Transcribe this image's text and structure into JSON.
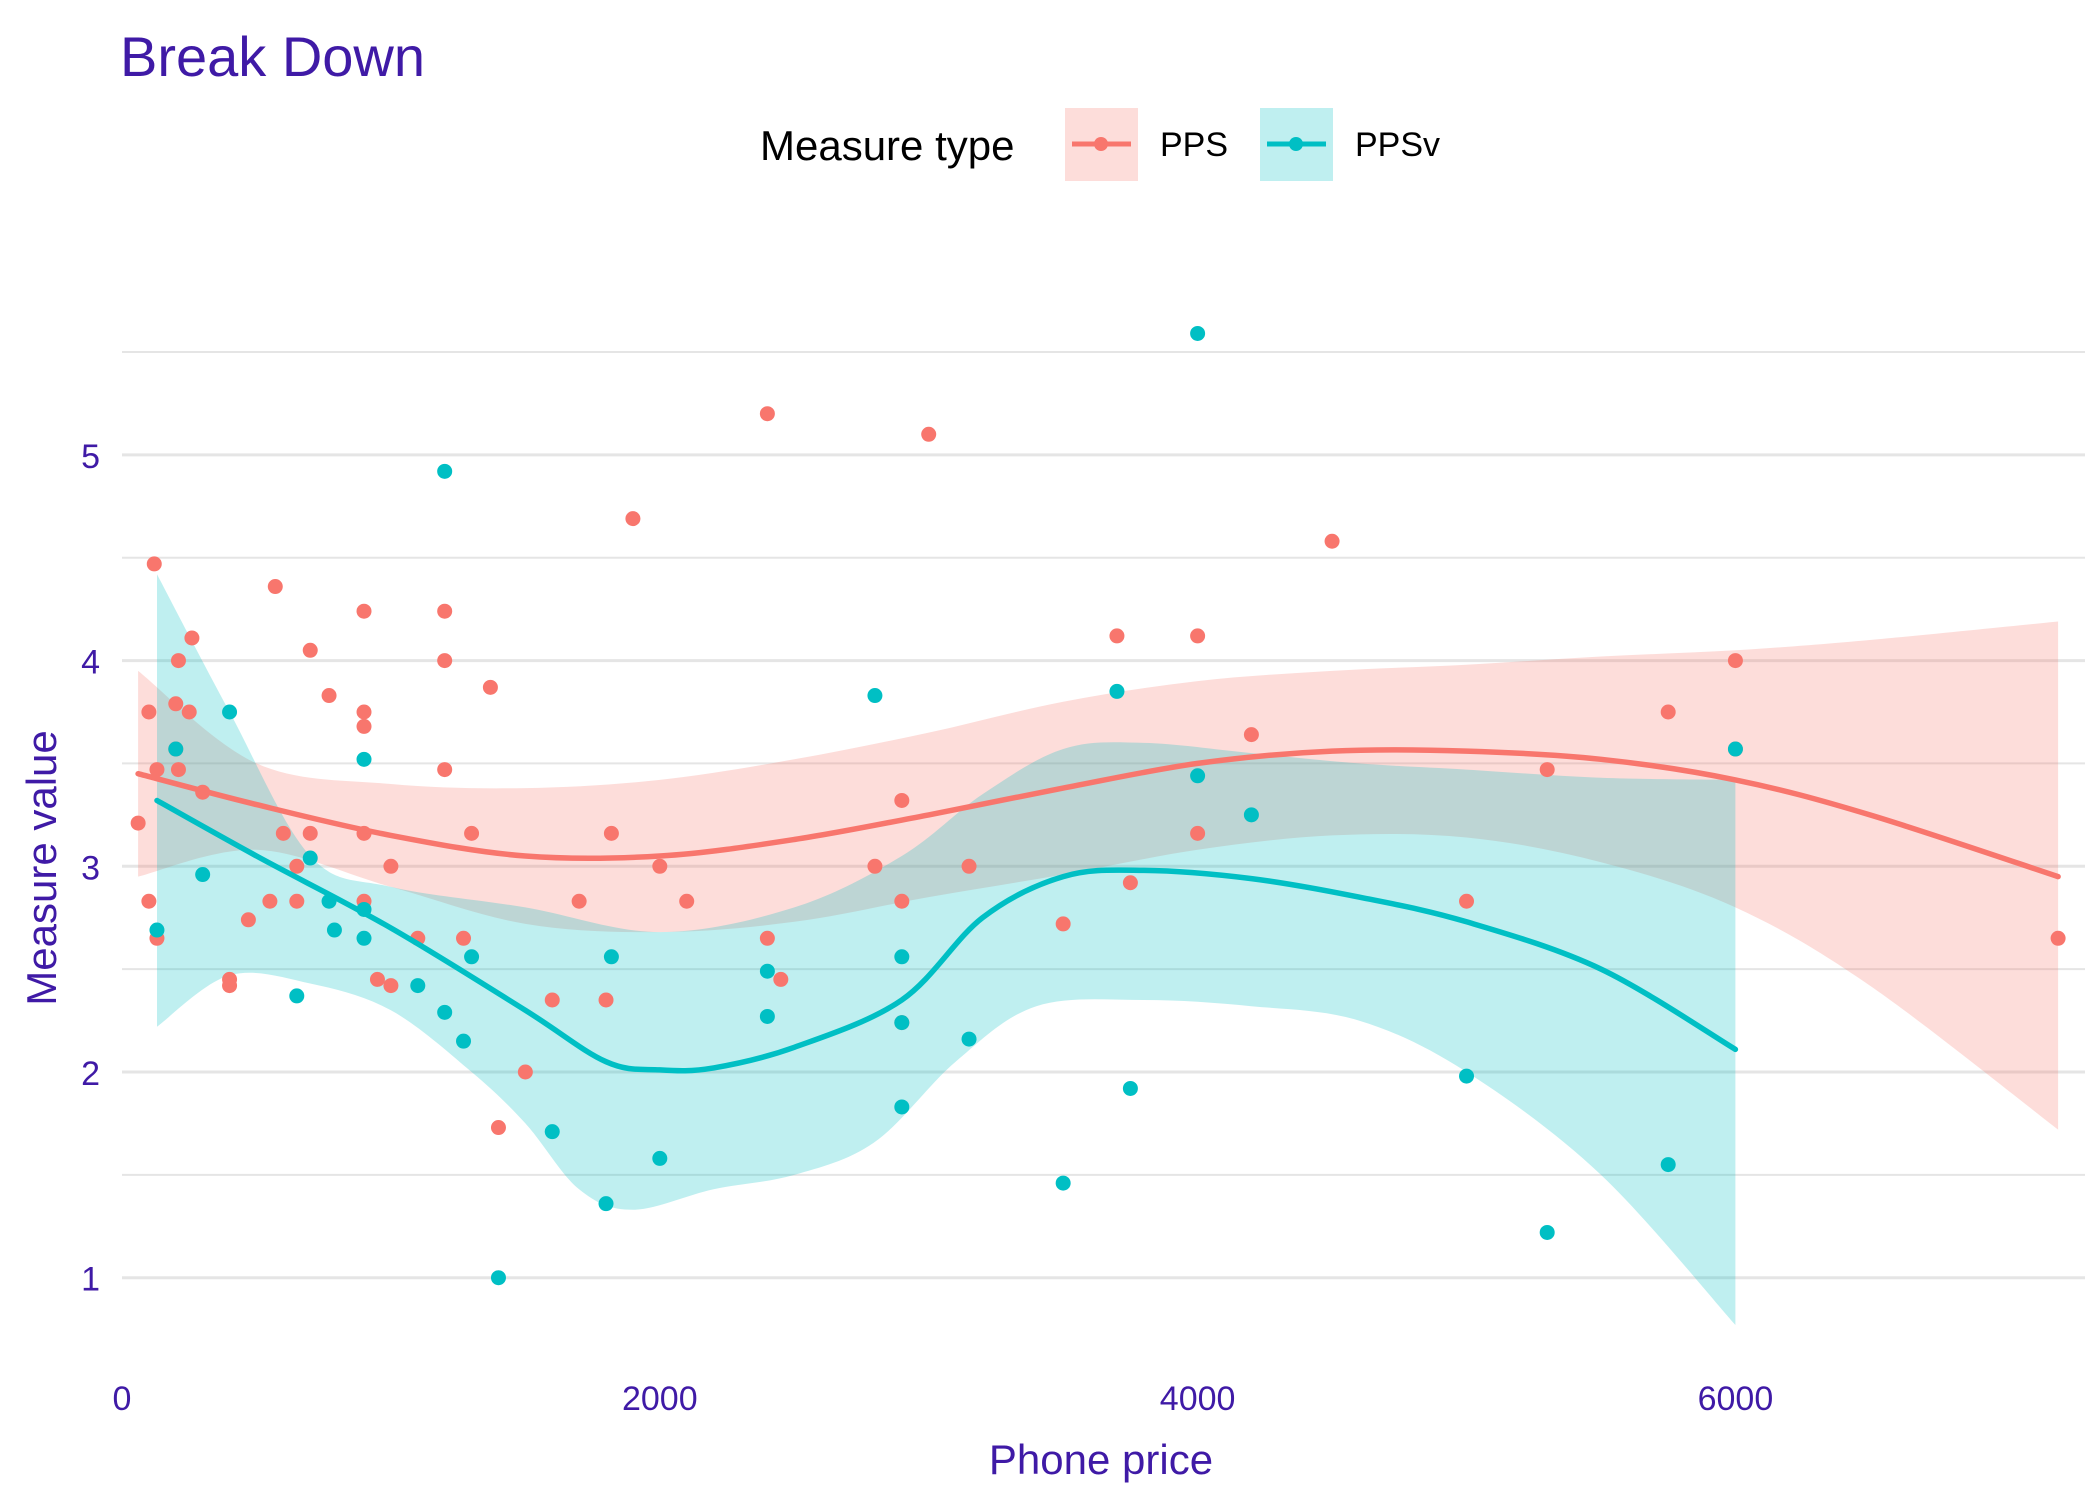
{
  "chart_data": {
    "type": "scatter",
    "title": "Break Down",
    "xlabel": "Phone price",
    "ylabel": "Measure value",
    "xlim": [
      0,
      7300
    ],
    "ylim": [
      0.6,
      5.85
    ],
    "x_ticks": [
      0,
      2000,
      4000,
      6000
    ],
    "y_ticks": [
      1,
      2,
      3,
      4,
      5
    ],
    "grid": true,
    "legend": {
      "title": "Measure type",
      "position": "top",
      "entries": [
        "PPS",
        "PPSv"
      ]
    },
    "colors": {
      "PPS": "#F8766D",
      "PPSv": "#00BFC4",
      "title_text": "#3F1AA6",
      "grid": "#E5E5E5"
    },
    "series": [
      {
        "name": "PPS",
        "points": [
          [
            60,
            3.21
          ],
          [
            100,
            3.75
          ],
          [
            100,
            2.83
          ],
          [
            120,
            4.47
          ],
          [
            130,
            3.47
          ],
          [
            130,
            2.65
          ],
          [
            200,
            3.79
          ],
          [
            200,
            3.57
          ],
          [
            210,
            3.47
          ],
          [
            210,
            4.0
          ],
          [
            250,
            3.75
          ],
          [
            260,
            4.11
          ],
          [
            300,
            3.36
          ],
          [
            400,
            2.42
          ],
          [
            400,
            2.45
          ],
          [
            470,
            2.74
          ],
          [
            550,
            2.83
          ],
          [
            570,
            4.36
          ],
          [
            600,
            3.16
          ],
          [
            650,
            3.0
          ],
          [
            650,
            2.83
          ],
          [
            700,
            4.05
          ],
          [
            700,
            3.16
          ],
          [
            770,
            3.83
          ],
          [
            900,
            4.24
          ],
          [
            900,
            3.75
          ],
          [
            900,
            3.68
          ],
          [
            900,
            3.16
          ],
          [
            900,
            2.83
          ],
          [
            950,
            2.45
          ],
          [
            1000,
            2.42
          ],
          [
            1000,
            3.0
          ],
          [
            1100,
            2.65
          ],
          [
            1200,
            4.24
          ],
          [
            1200,
            4.0
          ],
          [
            1200,
            3.47
          ],
          [
            1270,
            2.65
          ],
          [
            1300,
            3.16
          ],
          [
            1370,
            3.87
          ],
          [
            1400,
            1.73
          ],
          [
            1500,
            2.0
          ],
          [
            1600,
            2.35
          ],
          [
            1700,
            2.83
          ],
          [
            1800,
            2.35
          ],
          [
            1820,
            3.16
          ],
          [
            1900,
            4.69
          ],
          [
            2000,
            3.0
          ],
          [
            2100,
            2.83
          ],
          [
            2400,
            5.2
          ],
          [
            2400,
            2.65
          ],
          [
            2450,
            2.45
          ],
          [
            2800,
            3.0
          ],
          [
            2900,
            3.32
          ],
          [
            2900,
            2.83
          ],
          [
            2900,
            2.24
          ],
          [
            3000,
            5.1
          ],
          [
            3150,
            3.0
          ],
          [
            3500,
            2.72
          ],
          [
            3700,
            4.12
          ],
          [
            3750,
            2.92
          ],
          [
            4000,
            4.12
          ],
          [
            4000,
            3.16
          ],
          [
            4200,
            3.64
          ],
          [
            4500,
            4.58
          ],
          [
            5000,
            2.83
          ],
          [
            5300,
            3.47
          ],
          [
            5750,
            3.75
          ],
          [
            6000,
            4.0
          ],
          [
            6000,
            3.57
          ],
          [
            7200,
            2.65
          ]
        ],
        "smooth": [
          [
            60,
            3.45
          ],
          [
            500,
            3.3
          ],
          [
            1000,
            3.15
          ],
          [
            1500,
            3.05
          ],
          [
            2000,
            3.05
          ],
          [
            2500,
            3.13
          ],
          [
            3000,
            3.25
          ],
          [
            3500,
            3.38
          ],
          [
            4000,
            3.5
          ],
          [
            4500,
            3.56
          ],
          [
            5000,
            3.56
          ],
          [
            5500,
            3.52
          ],
          [
            6000,
            3.42
          ],
          [
            6500,
            3.25
          ],
          [
            7200,
            2.95
          ]
        ],
        "band_upper": [
          [
            60,
            3.95
          ],
          [
            500,
            3.5
          ],
          [
            1000,
            3.4
          ],
          [
            1500,
            3.38
          ],
          [
            2000,
            3.42
          ],
          [
            2500,
            3.52
          ],
          [
            3000,
            3.65
          ],
          [
            3500,
            3.8
          ],
          [
            4000,
            3.9
          ],
          [
            4500,
            3.95
          ],
          [
            5000,
            3.98
          ],
          [
            5500,
            4.02
          ],
          [
            6000,
            4.05
          ],
          [
            6500,
            4.1
          ],
          [
            7200,
            4.19
          ]
        ],
        "band_lower": [
          [
            60,
            2.95
          ],
          [
            500,
            3.08
          ],
          [
            1000,
            2.9
          ],
          [
            1500,
            2.72
          ],
          [
            2000,
            2.68
          ],
          [
            2500,
            2.73
          ],
          [
            3000,
            2.85
          ],
          [
            3500,
            2.96
          ],
          [
            4000,
            3.08
          ],
          [
            4500,
            3.15
          ],
          [
            5000,
            3.14
          ],
          [
            5500,
            3.02
          ],
          [
            6000,
            2.8
          ],
          [
            6500,
            2.42
          ],
          [
            7200,
            1.72
          ]
        ]
      },
      {
        "name": "PPSv",
        "points": [
          [
            130,
            2.69
          ],
          [
            200,
            3.57
          ],
          [
            300,
            2.96
          ],
          [
            400,
            3.75
          ],
          [
            650,
            2.37
          ],
          [
            700,
            3.04
          ],
          [
            770,
            2.83
          ],
          [
            790,
            2.69
          ],
          [
            900,
            3.52
          ],
          [
            900,
            2.79
          ],
          [
            900,
            2.65
          ],
          [
            1100,
            2.42
          ],
          [
            1200,
            4.92
          ],
          [
            1200,
            2.29
          ],
          [
            1270,
            2.15
          ],
          [
            1300,
            2.56
          ],
          [
            1400,
            1.0
          ],
          [
            1600,
            1.71
          ],
          [
            1800,
            1.36
          ],
          [
            1820,
            2.56
          ],
          [
            2000,
            1.58
          ],
          [
            2400,
            2.49
          ],
          [
            2400,
            2.27
          ],
          [
            2800,
            3.83
          ],
          [
            2900,
            2.56
          ],
          [
            2900,
            2.24
          ],
          [
            2900,
            1.83
          ],
          [
            3150,
            2.16
          ],
          [
            3500,
            1.46
          ],
          [
            3700,
            3.85
          ],
          [
            3750,
            1.92
          ],
          [
            4000,
            5.59
          ],
          [
            4000,
            3.44
          ],
          [
            4200,
            3.25
          ],
          [
            5000,
            1.98
          ],
          [
            5300,
            1.22
          ],
          [
            5750,
            1.55
          ],
          [
            6000,
            3.57
          ]
        ],
        "smooth": [
          [
            130,
            3.32
          ],
          [
            500,
            3.05
          ],
          [
            1000,
            2.7
          ],
          [
            1500,
            2.3
          ],
          [
            1800,
            2.05
          ],
          [
            2000,
            2.01
          ],
          [
            2200,
            2.02
          ],
          [
            2500,
            2.12
          ],
          [
            2900,
            2.35
          ],
          [
            3200,
            2.75
          ],
          [
            3500,
            2.95
          ],
          [
            3800,
            2.98
          ],
          [
            4200,
            2.94
          ],
          [
            4600,
            2.85
          ],
          [
            5000,
            2.73
          ],
          [
            5500,
            2.5
          ],
          [
            6000,
            2.11
          ]
        ],
        "band_upper": [
          [
            130,
            4.42
          ],
          [
            400,
            3.75
          ],
          [
            700,
            3.05
          ],
          [
            1000,
            2.9
          ],
          [
            1500,
            2.8
          ],
          [
            2000,
            2.68
          ],
          [
            2500,
            2.8
          ],
          [
            2900,
            3.05
          ],
          [
            3200,
            3.35
          ],
          [
            3500,
            3.57
          ],
          [
            3800,
            3.6
          ],
          [
            4200,
            3.55
          ],
          [
            4600,
            3.5
          ],
          [
            5000,
            3.47
          ],
          [
            5500,
            3.43
          ],
          [
            6000,
            3.42
          ]
        ],
        "band_lower": [
          [
            130,
            2.22
          ],
          [
            400,
            2.47
          ],
          [
            700,
            2.43
          ],
          [
            1000,
            2.3
          ],
          [
            1300,
            2.0
          ],
          [
            1500,
            1.75
          ],
          [
            1700,
            1.43
          ],
          [
            1900,
            1.33
          ],
          [
            2200,
            1.43
          ],
          [
            2500,
            1.5
          ],
          [
            2800,
            1.66
          ],
          [
            3100,
            2.05
          ],
          [
            3400,
            2.32
          ],
          [
            3800,
            2.35
          ],
          [
            4200,
            2.32
          ],
          [
            4600,
            2.25
          ],
          [
            5000,
            2.0
          ],
          [
            5500,
            1.5
          ],
          [
            6000,
            0.77
          ]
        ]
      }
    ]
  }
}
